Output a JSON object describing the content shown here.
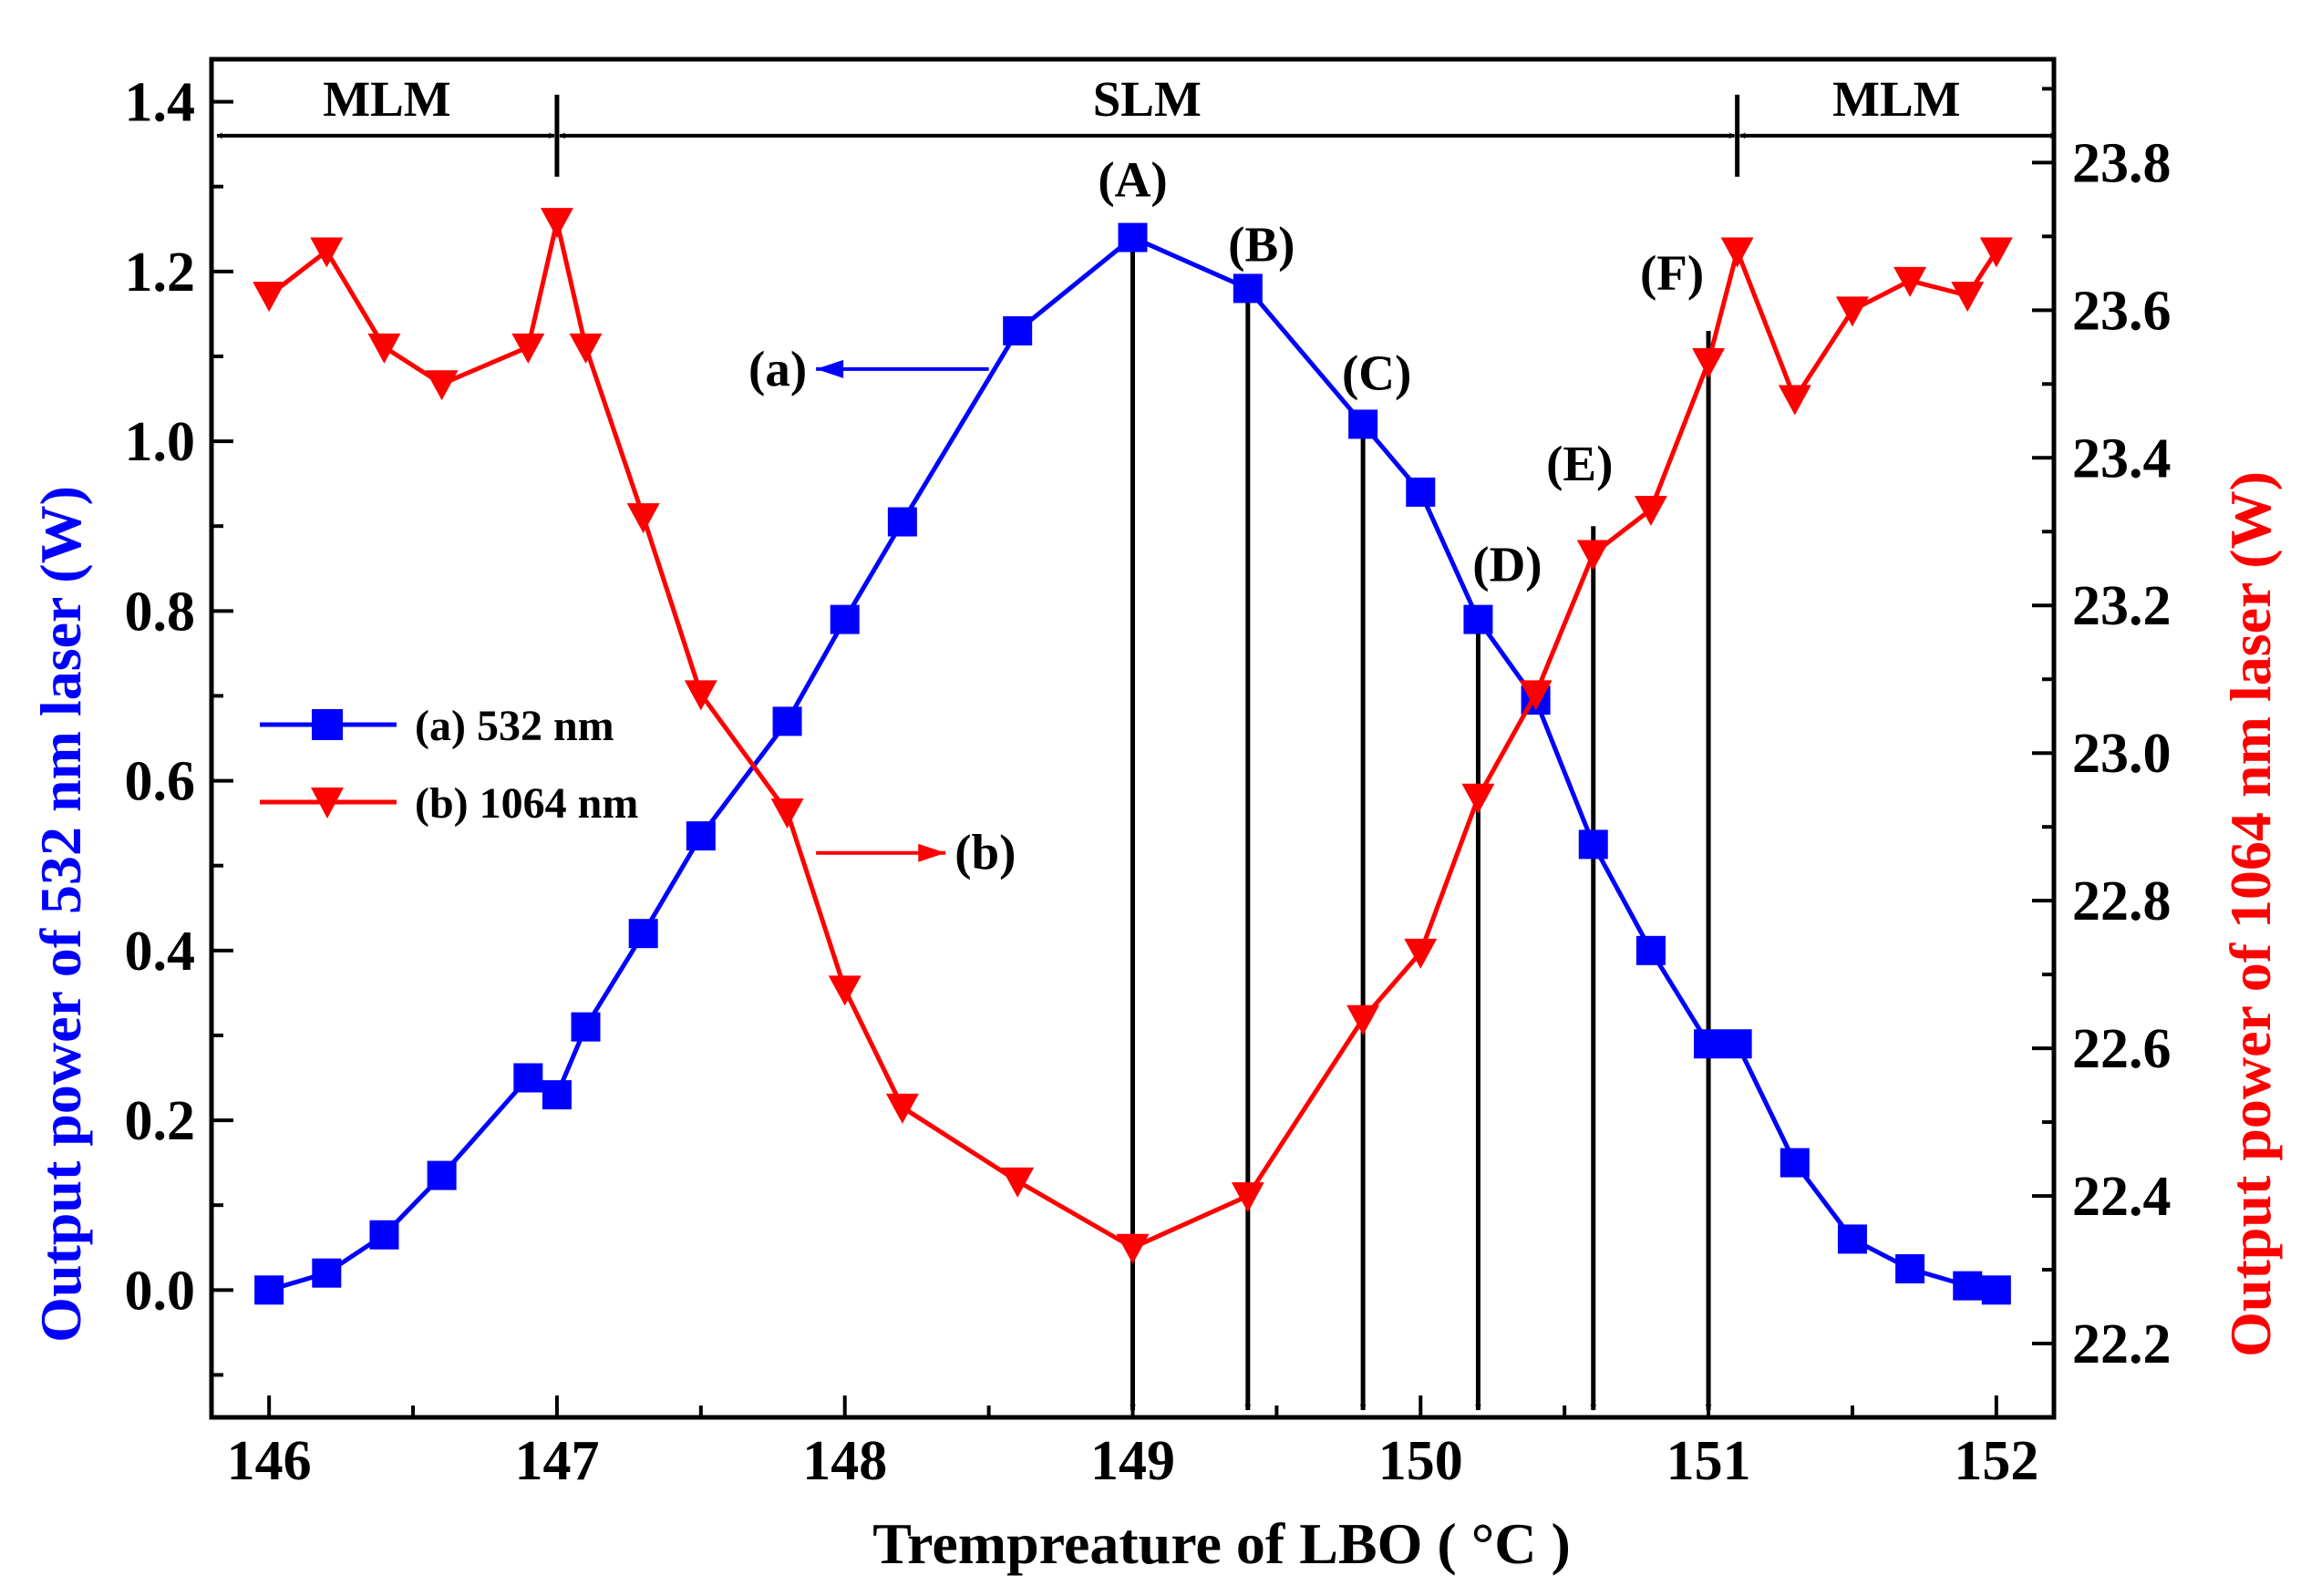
{
  "chart_data": {
    "type": "line",
    "xlabel": "Trempreature of  LBO ( °C )",
    "ylabel_left": "Output power of 532 nm laser (W)",
    "ylabel_right": "Output power of 1064 nm laser (W)",
    "xlim": [
      145.8,
      152.2
    ],
    "ylim_left": [
      -0.15,
      1.45
    ],
    "ylim_right": [
      22.1,
      23.94
    ],
    "x_ticks": [
      "146",
      "147",
      "148",
      "149",
      "150",
      "151",
      "152"
    ],
    "y_left_ticks": [
      "0.0",
      "0.2",
      "0.4",
      "0.6",
      "0.8",
      "1.0",
      "1.2",
      "1.4"
    ],
    "y_right_ticks": [
      "22.2",
      "22.4",
      "22.6",
      "22.8",
      "23.0",
      "23.2",
      "23.4",
      "23.6",
      "23.8"
    ],
    "colors": {
      "left_axis": "#0000ff",
      "right_axis": "#ff0000",
      "series_a": "#0000ff",
      "series_b": "#ff0000",
      "annotation": "#000000"
    },
    "series": [
      {
        "name": "(a) 532 nm",
        "axis": "left",
        "marker": "square",
        "x": [
          146.0,
          146.2,
          146.4,
          146.6,
          146.9,
          147.0,
          147.1,
          147.3,
          147.5,
          147.8,
          148.0,
          148.2,
          148.6,
          149.0,
          149.4,
          149.8,
          150.0,
          150.2,
          150.4,
          150.6,
          150.8,
          151.0,
          151.1,
          151.3,
          151.5,
          151.7,
          151.9,
          152.0
        ],
        "values": [
          0.0,
          0.02,
          0.065,
          0.135,
          0.25,
          0.23,
          0.31,
          0.42,
          0.535,
          0.67,
          0.79,
          0.905,
          1.13,
          1.24,
          1.18,
          1.02,
          0.94,
          0.79,
          0.695,
          0.525,
          0.4,
          0.29,
          0.29,
          0.15,
          0.06,
          0.025,
          0.005,
          0.0
        ]
      },
      {
        "name": "(b) 1064 nm",
        "axis": "right",
        "marker": "triangle-down",
        "x": [
          146.0,
          146.2,
          146.4,
          146.6,
          146.9,
          147.0,
          147.1,
          147.3,
          147.5,
          147.8,
          148.0,
          148.2,
          148.6,
          149.0,
          149.4,
          149.8,
          150.0,
          150.2,
          150.4,
          150.6,
          150.8,
          151.0,
          151.1,
          151.3,
          151.5,
          151.7,
          151.9,
          152.0
        ],
        "values": [
          23.62,
          23.68,
          23.55,
          23.5,
          23.55,
          23.72,
          23.55,
          23.32,
          23.08,
          22.92,
          22.68,
          22.52,
          22.42,
          22.33,
          22.4,
          22.64,
          22.73,
          22.94,
          23.08,
          23.27,
          23.33,
          23.53,
          23.68,
          23.48,
          23.6,
          23.64,
          23.62,
          23.68
        ]
      }
    ],
    "regions": [
      {
        "label": "MLM",
        "x_from": 145.8,
        "x_to": 147.0
      },
      {
        "label": "SLM",
        "x_from": 147.0,
        "x_to": 151.1
      },
      {
        "label": "MLM",
        "x_from": 151.1,
        "x_to": 152.2
      }
    ],
    "region_arrow_y": 1.36,
    "markers": [
      {
        "label": "(A)",
        "x": 149.0,
        "y_top": 1.24
      },
      {
        "label": "(B)",
        "x": 149.4,
        "y_top": 1.18
      },
      {
        "label": "(C)",
        "x": 149.8,
        "y_top": 1.02
      },
      {
        "label": "(D)",
        "x": 150.2,
        "y_top": 0.79
      },
      {
        "label": "(E)",
        "x": 150.6,
        "y_top": 0.9
      },
      {
        "label": "(F)",
        "x": 151.0,
        "y_top": 1.13
      }
    ],
    "pointers": [
      {
        "label": "(a)",
        "color": "#0000ff",
        "x_from": 148.5,
        "x_to": 147.9,
        "y": 1.085
      },
      {
        "label": "(b)",
        "color": "#ff0000",
        "x_from": 147.9,
        "x_to": 148.35,
        "y": 0.515
      }
    ],
    "legend_position": "middle-left"
  }
}
